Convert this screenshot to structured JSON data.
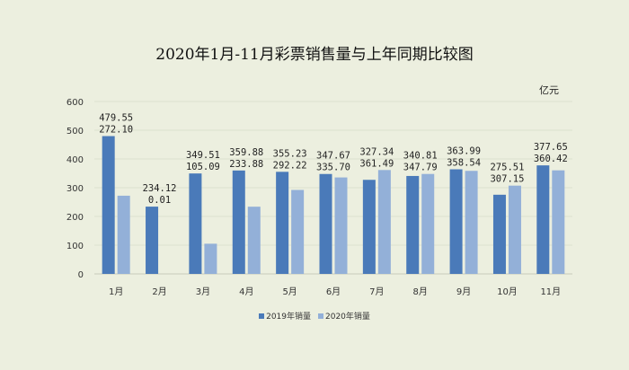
{
  "chart_data": {
    "type": "bar",
    "title": "2020年1月-11月彩票销售量与上年同期比较图",
    "unit": "亿元",
    "categories": [
      "1月",
      "2月",
      "3月",
      "4月",
      "5月",
      "6月",
      "7月",
      "8月",
      "9月",
      "10月",
      "11月"
    ],
    "series": [
      {
        "name": "2019年销量",
        "color": "#4a7ab9",
        "values": [
          479.55,
          234.12,
          349.51,
          359.88,
          355.23,
          347.67,
          327.34,
          340.81,
          363.99,
          275.51,
          377.65
        ]
      },
      {
        "name": "2020年销量",
        "color": "#93b0d8",
        "values": [
          272.1,
          0.01,
          105.09,
          233.88,
          292.22,
          335.7,
          361.49,
          347.79,
          358.54,
          307.15,
          360.42
        ]
      }
    ],
    "ylim": [
      0,
      600
    ],
    "yticks": [
      0,
      100,
      200,
      300,
      400,
      500,
      600
    ],
    "grid": true,
    "legend": "bottom"
  }
}
